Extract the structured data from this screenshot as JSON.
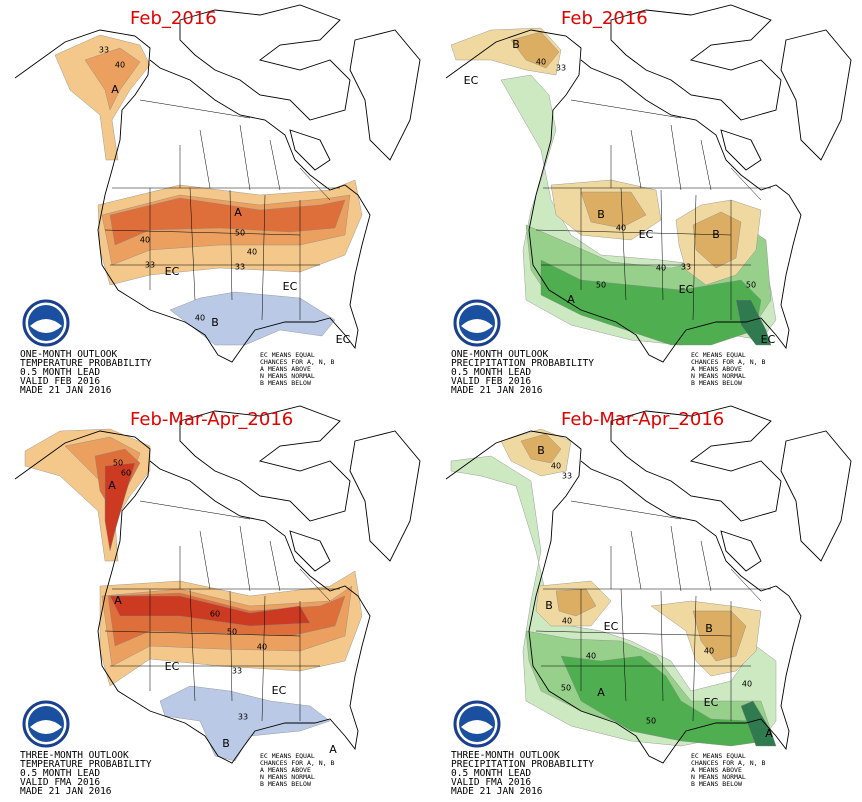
{
  "panels": [
    {
      "title": "Feb_2016",
      "logo": "NOAA",
      "caption": [
        "ONE-MONTH OUTLOOK",
        "TEMPERATURE PROBABILITY",
        "0.5 MONTH LEAD",
        "VALID FEB 2016",
        "MADE 21 JAN 2016"
      ],
      "legend": [
        "EC MEANS EQUAL",
        "CHANCES FOR A, N, B",
        "A MEANS ABOVE",
        "N MEANS NORMAL",
        "B MEANS BELOW"
      ],
      "labels": [
        "33",
        "40",
        "A",
        "A",
        "50",
        "40",
        "40",
        "33",
        "EC",
        "EC",
        "33",
        "40",
        "B",
        "EC"
      ]
    },
    {
      "title": "Feb_2016",
      "logo": "NOAA",
      "caption": [
        "ONE-MONTH OUTLOOK",
        "PRECIPITATION PROBABILITY",
        "0.5 MONTH LEAD",
        "VALID FEB 2016",
        "MADE 21 JAN 2016"
      ],
      "legend": [
        "EC MEANS EQUAL",
        "CHANCES FOR A, N, B",
        "A MEANS ABOVE",
        "N MEANS NORMAL",
        "B MEANS BELOW"
      ],
      "labels": [
        "B",
        "40",
        "33",
        "EC",
        "B",
        "40",
        "EC",
        "B",
        "33",
        "40",
        "A",
        "50",
        "EC",
        "50",
        "EC"
      ]
    },
    {
      "title": "Feb-Mar-Apr_2016",
      "logo": "NOAA",
      "caption": [
        "THREE-MONTH OUTLOOK",
        "TEMPERATURE PROBABILITY",
        "0.5 MONTH LEAD",
        "VALID FMA 2016",
        "MADE 21 JAN 2016"
      ],
      "legend": [
        "EC MEANS EQUAL",
        "CHANCES FOR A, N, B",
        "A MEANS ABOVE",
        "N MEANS NORMAL",
        "B MEANS BELOW"
      ],
      "labels": [
        "50",
        "60",
        "A",
        "A",
        "60",
        "50",
        "40",
        "EC",
        "33",
        "EC",
        "33",
        "B",
        "A"
      ]
    },
    {
      "title": "Feb-Mar-Apr_2016",
      "logo": "NOAA",
      "caption": [
        "THREE-MONTH OUTLOOK",
        "PRECIPITATION PROBABILITY",
        "0.5 MONTH LEAD",
        "VALID FMA 2016",
        "MADE 21 JAN 2016"
      ],
      "legend": [
        "EC MEANS EQUAL",
        "CHANCES FOR A, N, B",
        "A MEANS ABOVE",
        "N MEANS NORMAL",
        "B MEANS BELOW"
      ],
      "labels": [
        "B",
        "40",
        "33",
        "B",
        "40",
        "EC",
        "B",
        "40",
        "40",
        "50",
        "A",
        "50",
        "EC",
        "40",
        "A"
      ]
    }
  ]
}
